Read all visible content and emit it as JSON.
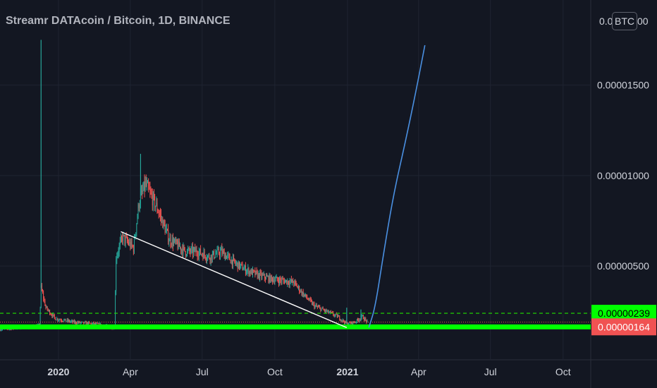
{
  "header": {
    "title": "Streamr DATAcoin / Bitcoin, 1D, BINANCE",
    "top_price_left": "0.0",
    "top_price_right": "00",
    "currency_badge": "BTC"
  },
  "colors": {
    "background": "#131722",
    "grid": "#1f2431",
    "up": "#26a69a",
    "down": "#ef5350",
    "trendline": "#ffffff",
    "projection": "#4a90e2",
    "resistance": "#22e000",
    "support": "#00ff00",
    "support_label_bg": "#f05252",
    "axis_text": "#d1d4dc"
  },
  "chart_data": {
    "type": "candlestick",
    "title": "Streamr DATAcoin / Bitcoin, 1D, BINANCE",
    "x_axis": {
      "range": [
        "2019-10-19",
        "2021-11-05"
      ],
      "ticks": [
        {
          "date": "2020-01-01",
          "label": "2020",
          "bold": true
        },
        {
          "date": "2020-04-01",
          "label": "Apr",
          "bold": false
        },
        {
          "date": "2020-07-01",
          "label": "Jul",
          "bold": false
        },
        {
          "date": "2020-10-01",
          "label": "Oct",
          "bold": false
        },
        {
          "date": "2021-01-01",
          "label": "2021",
          "bold": true
        },
        {
          "date": "2021-04-01",
          "label": "Apr",
          "bold": false
        },
        {
          "date": "2021-07-01",
          "label": "Jul",
          "bold": false
        },
        {
          "date": "2021-10-01",
          "label": "Oct",
          "bold": false
        }
      ]
    },
    "y_axis": {
      "range": [
        6e-07,
        1.97e-05
      ],
      "ticks": [
        {
          "value": 1.5e-05,
          "label": "0.00001500"
        },
        {
          "value": 1e-05,
          "label": "0.00001000"
        },
        {
          "value": 5e-06,
          "label": "0.00000500"
        }
      ]
    },
    "price_path": [
      [
        "2019-10-19",
        1.5e-06
      ],
      [
        "2019-11-15",
        1.6e-06
      ],
      [
        "2019-12-08",
        1.7e-06
      ],
      [
        "2019-12-10",
        3.8e-06
      ],
      [
        "2019-12-16",
        2.7e-06
      ],
      [
        "2019-12-28",
        2.1e-06
      ],
      [
        "2020-01-20",
        1.9e-06
      ],
      [
        "2020-02-15",
        1.8e-06
      ],
      [
        "2020-03-12",
        1.6e-06
      ],
      [
        "2020-03-14",
        5.5e-06
      ],
      [
        "2020-03-22",
        6.6e-06
      ],
      [
        "2020-04-05",
        6e-06
      ],
      [
        "2020-04-12",
        8.5e-06
      ],
      [
        "2020-04-20",
        9.5e-06
      ],
      [
        "2020-05-05",
        8.2e-06
      ],
      [
        "2020-05-20",
        6.5e-06
      ],
      [
        "2020-06-10",
        5.8e-06
      ],
      [
        "2020-06-25",
        5.8e-06
      ],
      [
        "2020-07-10",
        5.5e-06
      ],
      [
        "2020-07-25",
        5.8e-06
      ],
      [
        "2020-08-10",
        5.2e-06
      ],
      [
        "2020-08-25",
        4.8e-06
      ],
      [
        "2020-09-10",
        4.5e-06
      ],
      [
        "2020-09-25",
        4.3e-06
      ],
      [
        "2020-10-10",
        4.2e-06
      ],
      [
        "2020-10-25",
        4.1e-06
      ],
      [
        "2020-11-05",
        3.5e-06
      ],
      [
        "2020-11-20",
        2.8e-06
      ],
      [
        "2020-12-05",
        2.5e-06
      ],
      [
        "2020-12-20",
        2.2e-06
      ],
      [
        "2020-12-31",
        1.8e-06
      ],
      [
        "2021-01-10",
        1.9e-06
      ],
      [
        "2021-01-20",
        2.2e-06
      ],
      [
        "2021-01-26",
        1.9e-06
      ]
    ],
    "spikes": [
      {
        "date": "2019-12-10",
        "high": 1.75e-05
      },
      {
        "date": "2020-04-14",
        "high": 1.12e-05
      },
      {
        "date": "2020-12-31",
        "high": 2.7e-06
      },
      {
        "date": "2021-01-18",
        "high": 2.6e-06
      }
    ],
    "trendline": [
      [
        "2020-03-20",
        6.9e-06
      ],
      [
        "2020-12-31",
        1.6e-06
      ]
    ],
    "projection": [
      [
        "2021-01-28",
        1.6e-06
      ],
      [
        "2021-02-05",
        2.7e-06
      ],
      [
        "2021-02-15",
        5.5e-06
      ],
      [
        "2021-02-28",
        8.9e-06
      ],
      [
        "2021-03-15",
        1.18e-05
      ],
      [
        "2021-03-28",
        1.45e-05
      ],
      [
        "2021-04-09",
        1.72e-05
      ]
    ],
    "horizontal_lines": [
      {
        "name": "resistance",
        "value": 2.39e-06,
        "label": "0.00000239",
        "style": "dashed"
      },
      {
        "name": "support",
        "value": 1.64e-06,
        "label": "0.00000164",
        "style": "thick"
      }
    ],
    "current_price_line": 1.9e-06,
    "grid": true
  }
}
